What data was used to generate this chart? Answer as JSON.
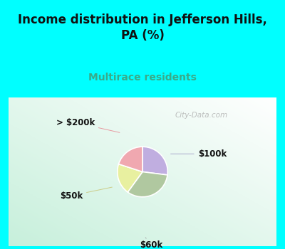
{
  "title": "Income distribution in Jefferson Hills,\nPA (%)",
  "subtitle": "Multirace residents",
  "title_color": "#111111",
  "subtitle_color": "#3aaa88",
  "background_outer": "#00ffff",
  "slices": [
    {
      "label": "$100k",
      "value": 27,
      "color": "#c0aee0"
    },
    {
      "label": "$60k",
      "value": 33,
      "color": "#b0c8a0"
    },
    {
      "label": "$50k",
      "value": 20,
      "color": "#e8f0a0"
    },
    {
      "label": "> $200k",
      "value": 20,
      "color": "#f0a8b0"
    }
  ],
  "watermark": "City-Data.com",
  "wedge_edge_color": "#ffffff",
  "wedge_linewidth": 1.2,
  "startangle": 90,
  "label_fontsize": 8.5,
  "label_color": "#111111",
  "title_fontsize": 12,
  "subtitle_fontsize": 10
}
